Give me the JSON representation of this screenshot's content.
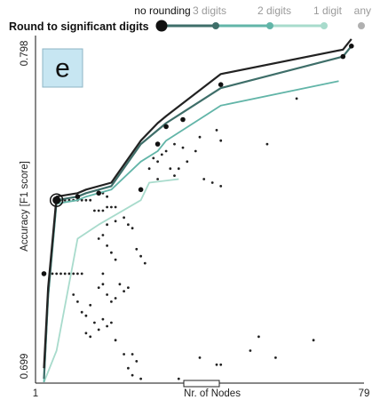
{
  "chart_data": {
    "type": "line",
    "panel_label": "e",
    "legend": {
      "title": "Round to significant digits",
      "items": [
        {
          "label": "no rounding",
          "color": "#111111",
          "highlighted": true
        },
        {
          "label": "3 digits",
          "color": "#3e6e69",
          "highlighted": false
        },
        {
          "label": "2 digits",
          "color": "#62b5a8",
          "highlighted": false
        },
        {
          "label": "1 digit",
          "color": "#a8dbcc",
          "highlighted": false
        },
        {
          "label": "any",
          "color": "#b0b0b0",
          "highlighted": false
        }
      ]
    },
    "xlabel": "Nr. of Nodes",
    "ylabel": "Accuracy [F1 score]",
    "x_tick_labels": [
      "1",
      "79"
    ],
    "y_tick_labels": [
      "0.699",
      "0.798"
    ],
    "xlim": [
      1,
      79
    ],
    "ylim": [
      0.699,
      0.798
    ],
    "series": [
      {
        "name": "no rounding",
        "color": "#222222",
        "x": [
          3,
          4,
          6,
          11,
          13,
          19,
          26,
          30,
          32,
          45,
          74,
          76
        ],
        "y": [
          0.703,
          0.726,
          0.752,
          0.753,
          0.754,
          0.756,
          0.768,
          0.773,
          0.775,
          0.787,
          0.794,
          0.797
        ]
      },
      {
        "name": "3 digits",
        "color": "#3e6e69",
        "x": [
          3,
          4,
          6,
          11,
          13,
          19,
          26,
          30,
          32,
          45,
          74,
          76
        ],
        "y": [
          0.7,
          0.724,
          0.751,
          0.752,
          0.753,
          0.755,
          0.767,
          0.771,
          0.773,
          0.783,
          0.792,
          0.795
        ]
      },
      {
        "name": "2 digits",
        "color": "#62b5a8",
        "x": [
          3,
          4,
          6,
          11,
          13,
          19,
          26,
          30,
          32,
          45,
          73
        ],
        "y": [
          0.699,
          0.723,
          0.75,
          0.751,
          0.752,
          0.754,
          0.762,
          0.765,
          0.768,
          0.778,
          0.785
        ]
      },
      {
        "name": "1 digit",
        "color": "#a8dbcc",
        "x": [
          3,
          6,
          11,
          16,
          26,
          28,
          35
        ],
        "y": [
          0.699,
          0.708,
          0.74,
          0.744,
          0.751,
          0.756,
          0.757
        ]
      }
    ],
    "markers": [
      {
        "x": 3,
        "y": 0.73
      },
      {
        "x": 6,
        "y": 0.751
      },
      {
        "x": 11,
        "y": 0.752
      },
      {
        "x": 16,
        "y": 0.753
      },
      {
        "x": 26,
        "y": 0.754
      },
      {
        "x": 30,
        "y": 0.767
      },
      {
        "x": 32,
        "y": 0.772
      },
      {
        "x": 36,
        "y": 0.774
      },
      {
        "x": 45,
        "y": 0.784
      },
      {
        "x": 74,
        "y": 0.792
      },
      {
        "x": 76,
        "y": 0.795
      }
    ],
    "highlighted_point": {
      "x": 6,
      "y": 0.751
    },
    "scatter_other": [
      {
        "x": 5,
        "y": 0.73
      },
      {
        "x": 6,
        "y": 0.73
      },
      {
        "x": 7,
        "y": 0.73
      },
      {
        "x": 8,
        "y": 0.73
      },
      {
        "x": 9,
        "y": 0.73
      },
      {
        "x": 10,
        "y": 0.73
      },
      {
        "x": 11,
        "y": 0.73
      },
      {
        "x": 12,
        "y": 0.73
      },
      {
        "x": 7,
        "y": 0.751
      },
      {
        "x": 8,
        "y": 0.751
      },
      {
        "x": 9,
        "y": 0.751
      },
      {
        "x": 10,
        "y": 0.751
      },
      {
        "x": 11,
        "y": 0.751
      },
      {
        "x": 12,
        "y": 0.751
      },
      {
        "x": 13,
        "y": 0.751
      },
      {
        "x": 14,
        "y": 0.751
      },
      {
        "x": 15,
        "y": 0.748
      },
      {
        "x": 16,
        "y": 0.748
      },
      {
        "x": 17,
        "y": 0.748
      },
      {
        "x": 18,
        "y": 0.749
      },
      {
        "x": 19,
        "y": 0.749
      },
      {
        "x": 20,
        "y": 0.749
      },
      {
        "x": 16,
        "y": 0.753
      },
      {
        "x": 17,
        "y": 0.753
      },
      {
        "x": 18,
        "y": 0.752
      },
      {
        "x": 17,
        "y": 0.741
      },
      {
        "x": 18,
        "y": 0.738
      },
      {
        "x": 19,
        "y": 0.736
      },
      {
        "x": 20,
        "y": 0.734
      },
      {
        "x": 17,
        "y": 0.73
      },
      {
        "x": 16,
        "y": 0.74
      },
      {
        "x": 18,
        "y": 0.744
      },
      {
        "x": 20,
        "y": 0.745
      },
      {
        "x": 22,
        "y": 0.746
      },
      {
        "x": 23,
        "y": 0.744
      },
      {
        "x": 24,
        "y": 0.743
      },
      {
        "x": 25,
        "y": 0.737
      },
      {
        "x": 26,
        "y": 0.735
      },
      {
        "x": 27,
        "y": 0.733
      },
      {
        "x": 30,
        "y": 0.757
      },
      {
        "x": 33,
        "y": 0.76
      },
      {
        "x": 34,
        "y": 0.758
      },
      {
        "x": 35,
        "y": 0.76
      },
      {
        "x": 37,
        "y": 0.762
      },
      {
        "x": 39,
        "y": 0.765
      },
      {
        "x": 28,
        "y": 0.76
      },
      {
        "x": 29,
        "y": 0.763
      },
      {
        "x": 30,
        "y": 0.762
      },
      {
        "x": 31,
        "y": 0.764
      },
      {
        "x": 32,
        "y": 0.765
      },
      {
        "x": 34,
        "y": 0.767
      },
      {
        "x": 36,
        "y": 0.766
      },
      {
        "x": 40,
        "y": 0.769
      },
      {
        "x": 44,
        "y": 0.771
      },
      {
        "x": 45,
        "y": 0.768
      },
      {
        "x": 41,
        "y": 0.757
      },
      {
        "x": 43,
        "y": 0.756
      },
      {
        "x": 45,
        "y": 0.755
      },
      {
        "x": 56,
        "y": 0.767
      },
      {
        "x": 63,
        "y": 0.78
      },
      {
        "x": 10,
        "y": 0.724
      },
      {
        "x": 11,
        "y": 0.722
      },
      {
        "x": 12,
        "y": 0.719
      },
      {
        "x": 13,
        "y": 0.718
      },
      {
        "x": 14,
        "y": 0.721
      },
      {
        "x": 16,
        "y": 0.726
      },
      {
        "x": 17,
        "y": 0.727
      },
      {
        "x": 18,
        "y": 0.724
      },
      {
        "x": 19,
        "y": 0.722
      },
      {
        "x": 20,
        "y": 0.723
      },
      {
        "x": 21,
        "y": 0.727
      },
      {
        "x": 22,
        "y": 0.725
      },
      {
        "x": 23,
        "y": 0.726
      },
      {
        "x": 13,
        "y": 0.713
      },
      {
        "x": 14,
        "y": 0.712
      },
      {
        "x": 15,
        "y": 0.716
      },
      {
        "x": 16,
        "y": 0.714
      },
      {
        "x": 17,
        "y": 0.717
      },
      {
        "x": 18,
        "y": 0.715
      },
      {
        "x": 19,
        "y": 0.716
      },
      {
        "x": 20,
        "y": 0.711
      },
      {
        "x": 24,
        "y": 0.707
      },
      {
        "x": 25,
        "y": 0.705
      },
      {
        "x": 40,
        "y": 0.706
      },
      {
        "x": 45,
        "y": 0.704
      },
      {
        "x": 22,
        "y": 0.707
      },
      {
        "x": 23,
        "y": 0.703
      },
      {
        "x": 24,
        "y": 0.701
      },
      {
        "x": 26,
        "y": 0.7
      },
      {
        "x": 44,
        "y": 0.704
      },
      {
        "x": 52,
        "y": 0.708
      },
      {
        "x": 54,
        "y": 0.712
      },
      {
        "x": 58,
        "y": 0.706
      },
      {
        "x": 35,
        "y": 0.7
      },
      {
        "x": 67,
        "y": 0.711
      }
    ]
  }
}
